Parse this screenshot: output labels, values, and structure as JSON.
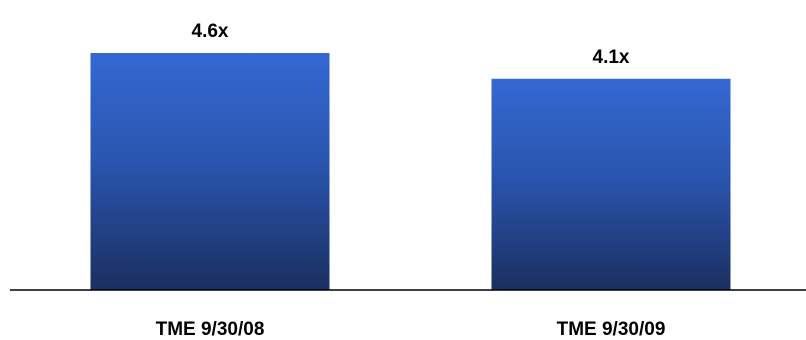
{
  "chart_data": {
    "type": "bar",
    "categories": [
      "TME 9/30/08",
      "TME 9/30/09"
    ],
    "values": [
      4.6,
      4.1
    ],
    "data_labels": [
      "4.6x",
      "4.1x"
    ],
    "title": "",
    "xlabel": "",
    "ylabel": "",
    "ylim": [
      0,
      4.6
    ],
    "grid": false,
    "legend": "none",
    "colors": {
      "bar_top": "#3468d2",
      "bar_bottom": "#1b2f61",
      "axis": "#000000"
    }
  }
}
